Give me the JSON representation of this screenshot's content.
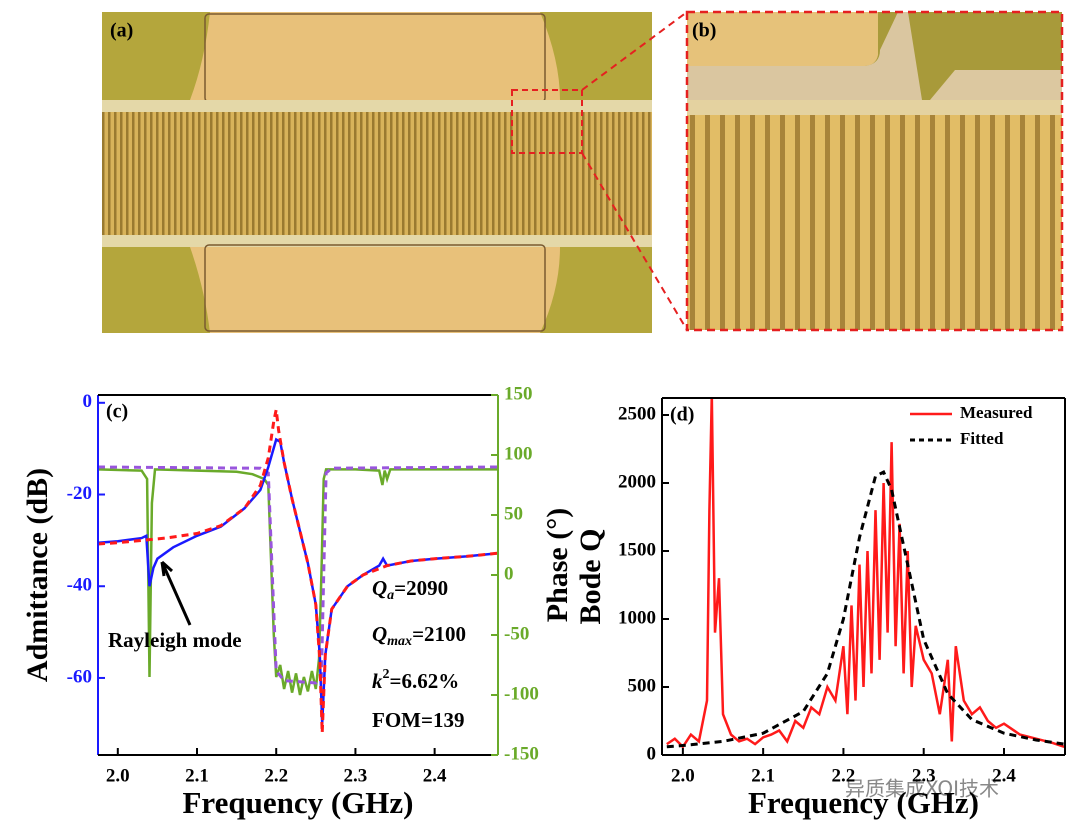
{
  "images": [
    {
      "label": "(a)"
    },
    {
      "label": "(b)"
    }
  ],
  "watermark": "异质集成XOI技术",
  "chart_data": [
    {
      "type": "line",
      "label": "(c)",
      "x_label": "Frequency (GHz)",
      "y_label": "Admittance (dB)",
      "y2_label": "Phase (°)",
      "xlim": [
        1.975,
        2.48
      ],
      "xticks": [
        {
          "value": 2.0,
          "label": "2.0"
        },
        2.1,
        2.2,
        2.3,
        2.4
      ],
      "ylim": [
        -76.8,
        1.7
      ],
      "yticks": [
        0,
        -20,
        -40,
        -60
      ],
      "y_color": "#1a1aff",
      "y2lim": [
        -150,
        150
      ],
      "y2ticks": [
        150,
        100,
        50,
        0,
        -50,
        -100,
        -150
      ],
      "y2_color": "#6aaa2a",
      "annotations": [
        {
          "text": "Rayleigh mode"
        },
        {
          "base": "Q",
          "sub": "a",
          "rest": "=2090"
        },
        {
          "base": "Q",
          "sub": "max",
          "rest": "=2100"
        },
        {
          "base": "k",
          "sup": "2",
          "rest": "=6.62%"
        },
        {
          "text": "FOM=139"
        }
      ],
      "series": [
        {
          "color": "#6aaa2a",
          "style": "solid",
          "axis": "y2",
          "x": [
            1.975,
            2.03,
            2.037,
            2.04,
            2.043,
            2.047,
            2.1,
            2.15,
            2.17,
            2.185,
            2.19,
            2.193,
            2.197,
            2.2,
            2.205,
            2.21,
            2.215,
            2.22,
            2.225,
            2.23,
            2.235,
            2.24,
            2.245,
            2.25,
            2.254,
            2.257,
            2.26,
            2.263,
            2.3,
            2.33,
            2.334,
            2.337,
            2.34,
            2.344,
            2.4,
            2.48
          ],
          "values": [
            88,
            87,
            80,
            -85,
            60,
            88,
            87,
            86,
            84,
            80,
            75,
            20,
            -50,
            -85,
            -75,
            -95,
            -80,
            -98,
            -82,
            -100,
            -85,
            -97,
            -80,
            -95,
            -70,
            0,
            80,
            88,
            88,
            87,
            75,
            87,
            80,
            88,
            88,
            88
          ]
        },
        {
          "color": "#9955dd",
          "style": "dashed",
          "axis": "y2",
          "x": [
            1.975,
            2.18,
            2.19,
            2.195,
            2.2,
            2.21,
            2.25,
            2.257,
            2.26,
            2.263,
            2.27,
            2.48
          ],
          "values": [
            90,
            89,
            85,
            0,
            -80,
            -88,
            -90,
            -85,
            0,
            85,
            89,
            90
          ]
        },
        {
          "color": "#1a1aff",
          "style": "solid",
          "axis": "y",
          "x": [
            1.975,
            2.0,
            2.03,
            2.036,
            2.04,
            2.045,
            2.05,
            2.07,
            2.1,
            2.13,
            2.16,
            2.18,
            2.19,
            2.2,
            2.205,
            2.21,
            2.22,
            2.23,
            2.24,
            2.25,
            2.255,
            2.258,
            2.262,
            2.27,
            2.29,
            2.31,
            2.33,
            2.335,
            2.34,
            2.37,
            2.4,
            2.44,
            2.48
          ],
          "values": [
            -30.5,
            -30.2,
            -29.5,
            -29,
            -40,
            -36,
            -34,
            -31.5,
            -29,
            -27,
            -23,
            -19,
            -14,
            -8,
            -8.5,
            -13,
            -21,
            -28,
            -35,
            -44,
            -55,
            -70,
            -55,
            -45,
            -40,
            -37.5,
            -35.5,
            -34,
            -35.5,
            -34.5,
            -34,
            -33.5,
            -32.8
          ]
        },
        {
          "color": "#ff1a1a",
          "style": "dashed",
          "axis": "y",
          "x": [
            1.975,
            2.0,
            2.03,
            2.06,
            2.1,
            2.13,
            2.16,
            2.18,
            2.19,
            2.197,
            2.2,
            2.203,
            2.21,
            2.22,
            2.23,
            2.24,
            2.25,
            2.255,
            2.258,
            2.262,
            2.27,
            2.29,
            2.31,
            2.34,
            2.37,
            2.4,
            2.44,
            2.48
          ],
          "values": [
            -30.8,
            -30.5,
            -30,
            -29.5,
            -28.5,
            -26.8,
            -23,
            -18,
            -12,
            -4,
            -1.5,
            -6,
            -13,
            -21,
            -28,
            -35,
            -44,
            -56,
            -72,
            -55,
            -45,
            -40,
            -37.5,
            -35.5,
            -34.5,
            -34,
            -33.5,
            -32.8
          ]
        }
      ]
    },
    {
      "type": "line",
      "label": "(d)",
      "x_label": "Frequency (GHz)",
      "y_label": "Bode Q",
      "xlim": [
        1.974,
        2.476
      ],
      "xticks": [
        {
          "value": 2.0,
          "label": "2.0"
        },
        2.1,
        2.2,
        2.3,
        2.4
      ],
      "ylim": [
        0,
        2625
      ],
      "yticks": [
        0,
        500,
        1000,
        1500,
        2000,
        2500
      ],
      "y_color": "#000000",
      "legend": "upper right",
      "series": [
        {
          "name": "Measured",
          "color": "#ff1a1a",
          "style": "solid",
          "axis": "y",
          "x": [
            1.98,
            1.99,
            2.0,
            2.01,
            2.02,
            2.03,
            2.033,
            2.036,
            2.04,
            2.045,
            2.05,
            2.06,
            2.07,
            2.08,
            2.09,
            2.1,
            2.11,
            2.12,
            2.13,
            2.14,
            2.15,
            2.16,
            2.17,
            2.18,
            2.19,
            2.2,
            2.205,
            2.21,
            2.215,
            2.22,
            2.225,
            2.23,
            2.235,
            2.24,
            2.245,
            2.25,
            2.255,
            2.26,
            2.265,
            2.27,
            2.275,
            2.28,
            2.285,
            2.29,
            2.3,
            2.31,
            2.32,
            2.33,
            2.335,
            2.34,
            2.35,
            2.36,
            2.37,
            2.38,
            2.39,
            2.4,
            2.42,
            2.44,
            2.46,
            2.475
          ],
          "values": [
            80,
            120,
            60,
            150,
            100,
            400,
            1800,
            2650,
            900,
            1300,
            300,
            150,
            100,
            120,
            80,
            130,
            150,
            180,
            100,
            250,
            200,
            350,
            300,
            500,
            400,
            800,
            300,
            1100,
            400,
            1400,
            500,
            1500,
            600,
            1800,
            700,
            2000,
            900,
            2300,
            800,
            1700,
            600,
            1500,
            500,
            950,
            700,
            600,
            300,
            700,
            100,
            800,
            400,
            300,
            350,
            250,
            200,
            230,
            150,
            120,
            90,
            60
          ]
        },
        {
          "name": "Fitted",
          "color": "#000000",
          "style": "dashed",
          "axis": "y",
          "x": [
            1.98,
            2.0,
            2.05,
            2.1,
            2.15,
            2.18,
            2.2,
            2.22,
            2.24,
            2.25,
            2.26,
            2.28,
            2.3,
            2.33,
            2.36,
            2.4,
            2.44,
            2.475
          ],
          "values": [
            60,
            70,
            100,
            160,
            320,
            600,
            1000,
            1600,
            2050,
            2080,
            1950,
            1400,
            850,
            450,
            260,
            160,
            110,
            80
          ]
        }
      ]
    }
  ]
}
